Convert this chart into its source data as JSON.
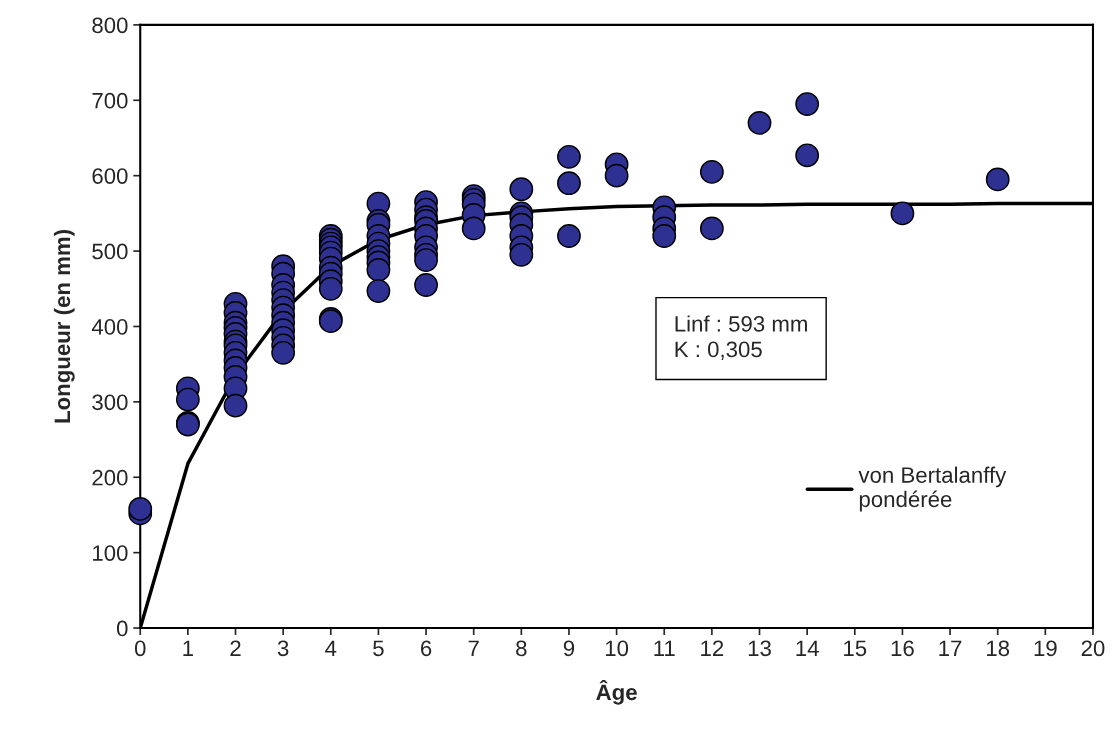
{
  "chart_data": {
    "type": "scatter",
    "xlabel": "Âge",
    "ylabel": "Longueur (en mm)",
    "xlim": [
      0,
      20
    ],
    "xticks": [
      0,
      1,
      2,
      3,
      4,
      5,
      6,
      7,
      8,
      9,
      10,
      11,
      12,
      13,
      14,
      15,
      16,
      17,
      18,
      19,
      20
    ],
    "ylim": [
      0,
      800
    ],
    "yticks": [
      0,
      100,
      200,
      300,
      400,
      500,
      600,
      700,
      800
    ],
    "grid": false,
    "legend": "bottom right",
    "annotations": [
      "Linf : 593 mm\nK : 0,305"
    ],
    "series": [
      {
        "marker": "circle",
        "color": "#2e3191",
        "x": [
          0,
          0,
          1,
          1,
          1,
          1,
          2,
          2,
          2,
          2,
          2,
          2,
          2,
          2,
          2,
          2,
          2,
          2,
          2,
          3,
          3,
          3,
          3,
          3,
          3,
          3,
          3,
          3,
          3,
          3,
          3,
          4,
          4,
          4,
          4,
          4,
          4,
          4,
          4,
          4,
          4,
          4,
          4,
          5,
          5,
          5,
          5,
          5,
          5,
          5,
          5,
          5,
          5,
          6,
          6,
          6,
          6,
          6,
          6,
          6,
          6,
          6,
          6,
          7,
          7,
          7,
          7,
          7,
          8,
          8,
          8,
          8,
          8,
          8,
          8,
          9,
          9,
          9,
          10,
          10,
          11,
          11,
          11,
          11,
          12,
          12,
          13,
          14,
          14,
          16,
          18
        ],
        "values": [
          152,
          158,
          318,
          303,
          272,
          270,
          430,
          418,
          405,
          398,
          390,
          380,
          375,
          365,
          355,
          345,
          333,
          318,
          295,
          480,
          470,
          455,
          445,
          435,
          425,
          415,
          405,
          395,
          385,
          375,
          365,
          520,
          515,
          510,
          505,
          498,
          490,
          478,
          470,
          460,
          450,
          410,
          407,
          563,
          540,
          535,
          520,
          510,
          500,
          492,
          485,
          475,
          447,
          565,
          555,
          545,
          540,
          530,
          520,
          505,
          495,
          488,
          455,
          573,
          568,
          562,
          548,
          530,
          582,
          550,
          545,
          535,
          520,
          505,
          495,
          625,
          590,
          520,
          615,
          600,
          558,
          545,
          530,
          520,
          605,
          530,
          670,
          695,
          627,
          550,
          595
        ]
      },
      {
        "type": "line",
        "name": "von Bertalanffy\npondérée",
        "color": "#000000",
        "marker": "none",
        "line_style": "solid",
        "x": [
          0,
          1,
          2,
          3,
          4,
          5,
          6,
          7,
          8,
          9,
          10,
          11,
          12,
          13,
          14,
          15,
          16,
          17,
          18,
          19,
          20
        ],
        "values": [
          0,
          218,
          335,
          420,
          480,
          515,
          535,
          547,
          552,
          556,
          559,
          560,
          561,
          561,
          562,
          562,
          562,
          562,
          563,
          563,
          563
        ]
      }
    ]
  }
}
